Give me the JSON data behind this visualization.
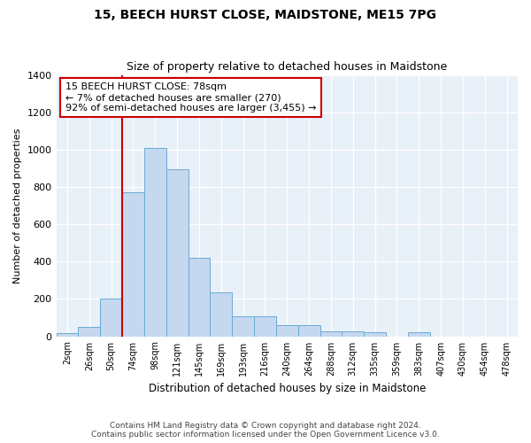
{
  "title": "15, BEECH HURST CLOSE, MAIDSTONE, ME15 7PG",
  "subtitle": "Size of property relative to detached houses in Maidstone",
  "xlabel": "Distribution of detached houses by size in Maidstone",
  "ylabel": "Number of detached properties",
  "footer_line1": "Contains HM Land Registry data © Crown copyright and database right 2024.",
  "footer_line2": "Contains public sector information licensed under the Open Government Licence v3.0.",
  "categories": [
    "2sqm",
    "26sqm",
    "50sqm",
    "74sqm",
    "98sqm",
    "121sqm",
    "145sqm",
    "169sqm",
    "193sqm",
    "216sqm",
    "240sqm",
    "264sqm",
    "288sqm",
    "312sqm",
    "335sqm",
    "359sqm",
    "383sqm",
    "407sqm",
    "430sqm",
    "454sqm",
    "478sqm"
  ],
  "bar_heights": [
    15,
    50,
    200,
    770,
    1010,
    895,
    420,
    235,
    107,
    107,
    60,
    60,
    25,
    25,
    20,
    0,
    20,
    0,
    0,
    0,
    0
  ],
  "bar_color": "#c5d8ef",
  "bar_edge_color": "#6aaad4",
  "bg_color": "#e8f0f8",
  "grid_color": "#ffffff",
  "property_line_color": "#cc0000",
  "property_line_index": 3.5,
  "annotation_text": "15 BEECH HURST CLOSE: 78sqm\n← 7% of detached houses are smaller (270)\n92% of semi-detached houses are larger (3,455) →",
  "annotation_box_color": "#cc0000",
  "ylim": [
    0,
    1400
  ],
  "yticks": [
    0,
    200,
    400,
    600,
    800,
    1000,
    1200,
    1400
  ]
}
